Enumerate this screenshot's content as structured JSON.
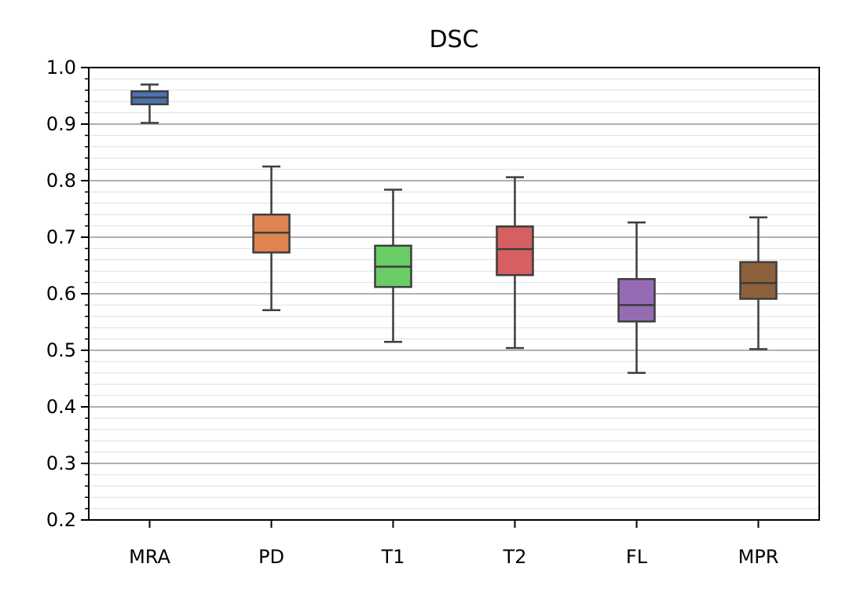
{
  "chart_data": {
    "type": "box",
    "title": "DSC",
    "xlabel": "",
    "ylabel": "",
    "ylim": [
      0.2,
      1.0
    ],
    "yticks": [
      "0.2",
      "0.3",
      "0.4",
      "0.5",
      "0.6",
      "0.7",
      "0.8",
      "0.9",
      "1.0"
    ],
    "grid": true,
    "categories": [
      "MRA",
      "PD",
      "T1",
      "T2",
      "FL",
      "MPR"
    ],
    "boxes": [
      {
        "category": "MRA",
        "min": 0.902,
        "q1": 0.935,
        "median": 0.947,
        "q3": 0.958,
        "max": 0.97,
        "color": "#4c72b0"
      },
      {
        "category": "PD",
        "min": 0.571,
        "q1": 0.673,
        "median": 0.708,
        "q3": 0.74,
        "max": 0.825,
        "color": "#dd8452"
      },
      {
        "category": "T1",
        "min": 0.515,
        "q1": 0.612,
        "median": 0.648,
        "q3": 0.685,
        "max": 0.784,
        "color": "#6acc64"
      },
      {
        "category": "T2",
        "min": 0.504,
        "q1": 0.633,
        "median": 0.679,
        "q3": 0.719,
        "max": 0.806,
        "color": "#d65f5f"
      },
      {
        "category": "FL",
        "min": 0.46,
        "q1": 0.551,
        "median": 0.58,
        "q3": 0.626,
        "max": 0.726,
        "color": "#956cb4"
      },
      {
        "category": "MPR",
        "min": 0.502,
        "q1": 0.591,
        "median": 0.619,
        "q3": 0.656,
        "max": 0.735,
        "color": "#8c613c"
      }
    ]
  }
}
